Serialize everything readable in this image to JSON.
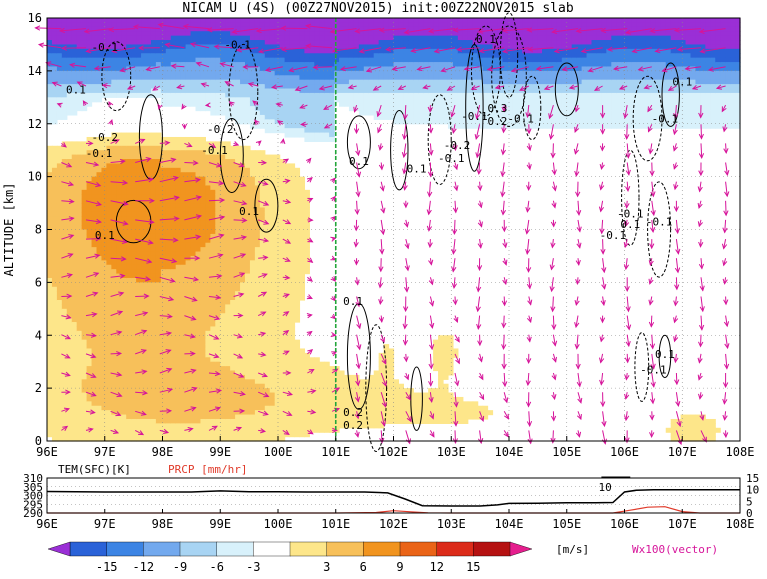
{
  "chart_data": [
    {
      "type": "heatmap",
      "title": "NICAM U (4S) (00Z27NOV2015) init:00Z22NOV2015 slab",
      "ylabel": "ALTITUDE [km]",
      "x_ticks": [
        "96E",
        "97E",
        "98E",
        "99E",
        "100E",
        "101E",
        "102E",
        "103E",
        "104E",
        "105E",
        "106E",
        "107E",
        "108E"
      ],
      "y_ticks": [
        "0",
        "2",
        "4",
        "6",
        "8",
        "10",
        "12",
        "14",
        "16"
      ],
      "xlim": [
        96,
        108
      ],
      "ylim": [
        0,
        16
      ],
      "grid": true,
      "marker_line_lon": 101,
      "contour_labels": [
        {
          "text": "-0.1",
          "lon": 97.0,
          "alt": 14.9
        },
        {
          "text": "-0.1",
          "lon": 99.3,
          "alt": 15.0
        },
        {
          "text": "0.1",
          "lon": 96.5,
          "alt": 13.3
        },
        {
          "text": "-0.2",
          "lon": 97.0,
          "alt": 11.5
        },
        {
          "text": "-0.1",
          "lon": 96.9,
          "alt": 10.9
        },
        {
          "text": "-0.2",
          "lon": 99.0,
          "alt": 11.8
        },
        {
          "text": "-0.1",
          "lon": 98.9,
          "alt": 11.0
        },
        {
          "text": "0.1",
          "lon": 99.5,
          "alt": 8.7
        },
        {
          "text": "0.1",
          "lon": 97.0,
          "alt": 7.8
        },
        {
          "text": "0.1",
          "lon": 101.4,
          "alt": 10.6
        },
        {
          "text": "0.1",
          "lon": 102.4,
          "alt": 10.3
        },
        {
          "text": "-0.1",
          "lon": 103.4,
          "alt": 12.3
        },
        {
          "text": "-0.2",
          "lon": 103.1,
          "alt": 11.2
        },
        {
          "text": "-0.1",
          "lon": 103.0,
          "alt": 10.7
        },
        {
          "text": "0.1",
          "lon": 103.6,
          "alt": 15.2
        },
        {
          "text": "0.3",
          "lon": 103.8,
          "alt": 12.6
        },
        {
          "text": "0.2",
          "lon": 103.8,
          "alt": 12.1
        },
        {
          "text": "-0.1",
          "lon": 104.2,
          "alt": 12.2
        },
        {
          "text": "0.1",
          "lon": 107.0,
          "alt": 13.6
        },
        {
          "text": "-0.1",
          "lon": 106.7,
          "alt": 12.2
        },
        {
          "text": "-0.1",
          "lon": 106.1,
          "alt": 8.6
        },
        {
          "text": "0.1",
          "lon": 106.1,
          "alt": 8.2
        },
        {
          "text": "-0.1",
          "lon": 106.6,
          "alt": 8.3
        },
        {
          "text": "-0.1",
          "lon": 105.8,
          "alt": 7.8
        },
        {
          "text": "0.1",
          "lon": 101.3,
          "alt": 5.3
        },
        {
          "text": "0.1",
          "lon": 106.7,
          "alt": 3.3
        },
        {
          "text": "-0.1",
          "lon": 106.5,
          "alt": 2.7
        },
        {
          "text": "0.2",
          "lon": 101.3,
          "alt": 1.1
        },
        {
          "text": "0.2",
          "lon": 101.3,
          "alt": 0.6
        }
      ]
    },
    {
      "type": "line",
      "x_ticks": [
        "96E",
        "97E",
        "98E",
        "99E",
        "100E",
        "101E",
        "102E",
        "103E",
        "104E",
        "105E",
        "106E",
        "107E",
        "108E"
      ],
      "xlim": [
        96,
        108
      ],
      "left_label": "TEM(SFC)[K]",
      "right_label": "PRCP [mm/hr]",
      "left_ticks": [
        "310",
        "305",
        "300",
        "295",
        "290"
      ],
      "right_ticks": [
        "15",
        "10",
        "5",
        "0"
      ],
      "left_ylim": [
        290,
        310
      ],
      "right_ylim": [
        0,
        15
      ],
      "annotation": "10",
      "series": [
        {
          "name": "TEM(SFC)[K]",
          "color": "#000000",
          "x": [
            96,
            96.5,
            97,
            97.5,
            98,
            98.5,
            99,
            99.5,
            100,
            100.5,
            101,
            101.5,
            101.9,
            102.2,
            102.5,
            103,
            103.5,
            103.8,
            104,
            104.5,
            105,
            105.5,
            105.8,
            106,
            106.2,
            106.5,
            107,
            107.5,
            108
          ],
          "values": [
            302.3,
            302.1,
            302.0,
            302.0,
            302.0,
            302.0,
            302.6,
            302.2,
            302.1,
            302.0,
            302.0,
            302.0,
            301.5,
            298.0,
            294.2,
            294.0,
            294.0,
            294.6,
            295.5,
            295.6,
            295.8,
            295.8,
            296.0,
            302.0,
            303.0,
            303.3,
            303.3,
            303.3,
            303.3
          ]
        },
        {
          "name": "PRCP [mm/hr]",
          "color": "#e03a2a",
          "x": [
            96,
            97,
            98,
            99,
            100,
            101,
            101.7,
            102,
            102.3,
            102.6,
            103,
            104,
            105,
            105.8,
            106.1,
            106.4,
            106.7,
            107,
            107.3,
            108
          ],
          "values": [
            0,
            0,
            0,
            0,
            0,
            0,
            0.2,
            1.0,
            0.5,
            0.1,
            0,
            0,
            0,
            0,
            1.2,
            2.5,
            2.7,
            0.6,
            0,
            0
          ]
        }
      ]
    }
  ],
  "colorbar": {
    "ticks": [
      "-15",
      "-12",
      "-9",
      "-6",
      "-3",
      "3",
      "6",
      "9",
      "12",
      "15"
    ],
    "unit": "[m/s]",
    "vector_label": "Wx100(vector)",
    "colors": [
      "#9a2fd6",
      "#2a62d8",
      "#3c84e4",
      "#73a9ee",
      "#a8d4f3",
      "#d8f1fb",
      "#ffffff",
      "#fde68a",
      "#f7c05a",
      "#f1941f",
      "#ea6418",
      "#dc2b1a",
      "#b51111",
      "#e51e8e"
    ]
  }
}
